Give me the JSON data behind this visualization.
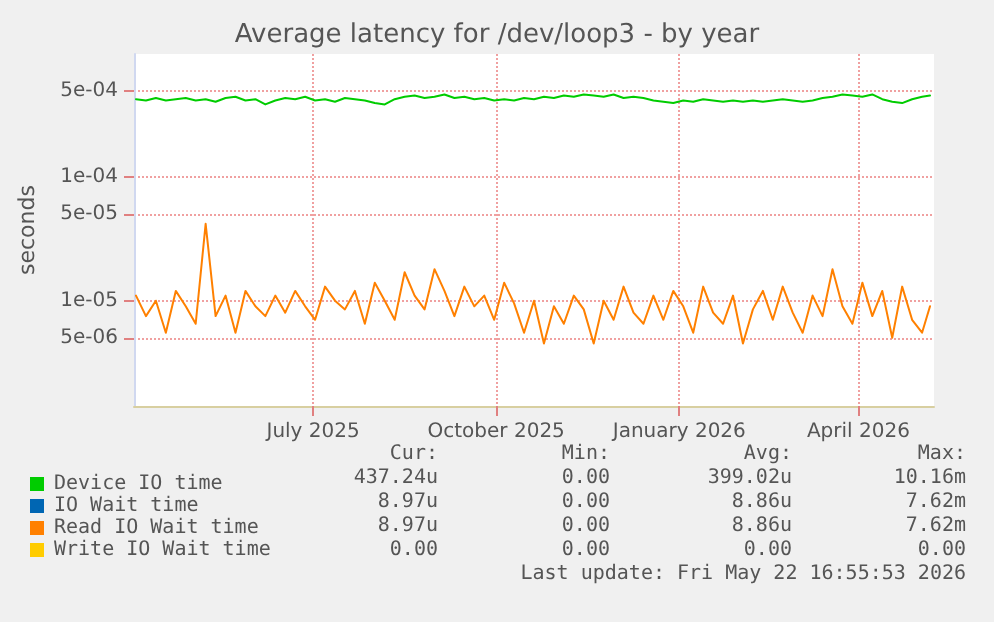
{
  "chart_data": {
    "type": "line",
    "title": "Average latency for /dev/loop3 - by year",
    "ylabel": "seconds",
    "log": "y",
    "grid": true,
    "legend": "bottom left",
    "marker": "none",
    "line_style": "solid",
    "xlim": [
      "2025-04-17",
      "2026-05-24"
    ],
    "xticks": [
      {
        "value": "2025-07-16",
        "label": "July 2025"
      },
      {
        "value": "2025-10-16",
        "label": "October 2025"
      },
      {
        "value": "2026-01-16",
        "label": "January 2026"
      },
      {
        "value": "2026-04-16",
        "label": "April 2026"
      }
    ],
    "ylim": [
      1.4e-06,
      0.001
    ],
    "yticks": [
      {
        "value": 5e-06,
        "label": "5e-06"
      },
      {
        "value": 1e-05,
        "label": "1e-05"
      },
      {
        "value": 5e-05,
        "label": "5e-05"
      },
      {
        "value": 0.0001,
        "label": "1e-04"
      },
      {
        "value": 0.0005,
        "label": "5e-04"
      }
    ],
    "x": [
      "2025-04-18",
      "2025-04-23",
      "2025-04-28",
      "2025-05-03",
      "2025-05-08",
      "2025-05-13",
      "2025-05-18",
      "2025-05-23",
      "2025-05-28",
      "2025-06-02",
      "2025-06-07",
      "2025-06-12",
      "2025-06-17",
      "2025-06-22",
      "2025-06-27",
      "2025-07-02",
      "2025-07-07",
      "2025-07-12",
      "2025-07-17",
      "2025-07-22",
      "2025-07-27",
      "2025-08-01",
      "2025-08-06",
      "2025-08-11",
      "2025-08-16",
      "2025-08-21",
      "2025-08-26",
      "2025-08-31",
      "2025-09-05",
      "2025-09-10",
      "2025-09-15",
      "2025-09-20",
      "2025-09-25",
      "2025-09-30",
      "2025-10-05",
      "2025-10-10",
      "2025-10-15",
      "2025-10-20",
      "2025-10-25",
      "2025-10-30",
      "2025-11-04",
      "2025-11-09",
      "2025-11-14",
      "2025-11-19",
      "2025-11-24",
      "2025-11-29",
      "2025-12-04",
      "2025-12-09",
      "2025-12-14",
      "2025-12-19",
      "2025-12-24",
      "2025-12-29",
      "2026-01-03",
      "2026-01-08",
      "2026-01-13",
      "2026-01-18",
      "2026-01-23",
      "2026-01-28",
      "2026-02-02",
      "2026-02-07",
      "2026-02-12",
      "2026-02-17",
      "2026-02-22",
      "2026-02-27",
      "2026-03-04",
      "2026-03-09",
      "2026-03-14",
      "2026-03-19",
      "2026-03-24",
      "2026-03-29",
      "2026-04-03",
      "2026-04-08",
      "2026-04-13",
      "2026-04-18",
      "2026-04-23",
      "2026-04-28",
      "2026-05-03",
      "2026-05-08",
      "2026-05-13",
      "2026-05-18",
      "2026-05-22"
    ],
    "series": [
      {
        "name": "Device IO time",
        "color": "#00cc00",
        "values": [
          0.00043,
          0.00042,
          0.00044,
          0.00042,
          0.00043,
          0.00044,
          0.00042,
          0.00043,
          0.00041,
          0.00044,
          0.00045,
          0.00042,
          0.00043,
          0.00039,
          0.00042,
          0.00044,
          0.00043,
          0.00045,
          0.00042,
          0.00043,
          0.00041,
          0.00044,
          0.00043,
          0.00042,
          0.0004,
          0.00039,
          0.00043,
          0.00045,
          0.00046,
          0.00044,
          0.00045,
          0.00047,
          0.00044,
          0.00045,
          0.00043,
          0.00044,
          0.00042,
          0.00043,
          0.00042,
          0.00044,
          0.00043,
          0.00045,
          0.00044,
          0.00046,
          0.00045,
          0.00047,
          0.00046,
          0.00045,
          0.00047,
          0.00044,
          0.00045,
          0.00044,
          0.00042,
          0.00041,
          0.0004,
          0.00042,
          0.00041,
          0.00043,
          0.00042,
          0.00041,
          0.00042,
          0.00041,
          0.00042,
          0.00041,
          0.00042,
          0.00043,
          0.00042,
          0.00041,
          0.00042,
          0.00044,
          0.00045,
          0.00047,
          0.00046,
          0.00045,
          0.00047,
          0.00043,
          0.00041,
          0.0004,
          0.00043,
          0.00045,
          0.00046
        ]
      },
      {
        "name": "IO Wait time",
        "color": "#0066b3",
        "values": [
          null,
          null,
          null,
          null,
          null,
          null,
          null,
          null,
          null,
          null,
          null,
          null,
          null,
          null,
          null,
          null,
          null,
          null,
          null,
          null,
          null,
          null,
          null,
          null,
          null,
          null,
          null,
          null,
          null,
          null,
          null,
          null,
          null,
          null,
          null,
          null,
          null,
          null,
          null,
          null,
          null,
          null,
          null,
          null,
          null,
          null,
          null,
          null,
          null,
          null,
          null,
          null,
          null,
          null,
          null,
          null,
          null,
          null,
          null,
          null,
          null,
          null,
          null,
          null,
          null,
          null,
          null,
          null,
          null,
          null,
          null,
          null,
          null,
          null,
          null,
          null,
          null,
          null,
          null,
          null,
          null
        ]
      },
      {
        "name": "Read IO Wait time",
        "color": "#ff8000",
        "values": [
          1.1e-05,
          7.5e-06,
          1e-05,
          5.5e-06,
          1.2e-05,
          9e-06,
          6.5e-06,
          4.2e-05,
          7.5e-06,
          1.1e-05,
          5.5e-06,
          1.2e-05,
          9e-06,
          7.5e-06,
          1.1e-05,
          8e-06,
          1.2e-05,
          9e-06,
          7e-06,
          1.3e-05,
          1e-05,
          8.5e-06,
          1.2e-05,
          6.5e-06,
          1.4e-05,
          1e-05,
          7e-06,
          1.7e-05,
          1.1e-05,
          8.5e-06,
          1.8e-05,
          1.2e-05,
          7.5e-06,
          1.3e-05,
          9e-06,
          1.1e-05,
          7e-06,
          1.4e-05,
          9.5e-06,
          5.5e-06,
          1e-05,
          4.5e-06,
          9e-06,
          6.5e-06,
          1.1e-05,
          8.5e-06,
          4.5e-06,
          1e-05,
          7e-06,
          1.3e-05,
          8e-06,
          6.5e-06,
          1.1e-05,
          7e-06,
          1.2e-05,
          9e-06,
          5.5e-06,
          1.3e-05,
          8e-06,
          6.5e-06,
          1.1e-05,
          4.5e-06,
          8.5e-06,
          1.2e-05,
          7e-06,
          1.3e-05,
          8e-06,
          5.5e-06,
          1.1e-05,
          7.5e-06,
          1.8e-05,
          9e-06,
          6.5e-06,
          1.4e-05,
          7.5e-06,
          1.2e-05,
          5e-06,
          1.3e-05,
          7e-06,
          5.5e-06,
          9e-06
        ]
      },
      {
        "name": "Write IO Wait time",
        "color": "#ffcc00",
        "values": [
          null,
          null,
          null,
          null,
          null,
          null,
          null,
          null,
          null,
          null,
          null,
          null,
          null,
          null,
          null,
          null,
          null,
          null,
          null,
          null,
          null,
          null,
          null,
          null,
          null,
          null,
          null,
          null,
          null,
          null,
          null,
          null,
          null,
          null,
          null,
          null,
          null,
          null,
          null,
          null,
          null,
          null,
          null,
          null,
          null,
          null,
          null,
          null,
          null,
          null,
          null,
          null,
          null,
          null,
          null,
          null,
          null,
          null,
          null,
          null,
          null,
          null,
          null,
          null,
          null,
          null,
          null,
          null,
          null,
          null,
          null,
          null,
          null,
          null,
          null,
          null,
          null,
          null,
          null,
          null,
          null
        ]
      }
    ],
    "annotations": [
      "Cur:",
      "Min:",
      "Avg:",
      "Max:",
      "437.24u",
      "0.00",
      "399.02u",
      "10.16m",
      "8.97u",
      "0.00",
      "8.86u",
      "7.62m",
      "8.97u",
      "0.00",
      "8.86u",
      "7.62m",
      "0.00",
      "0.00",
      "0.00",
      "0.00",
      "Last update: Fri May 22 16:55:53 2026"
    ]
  }
}
